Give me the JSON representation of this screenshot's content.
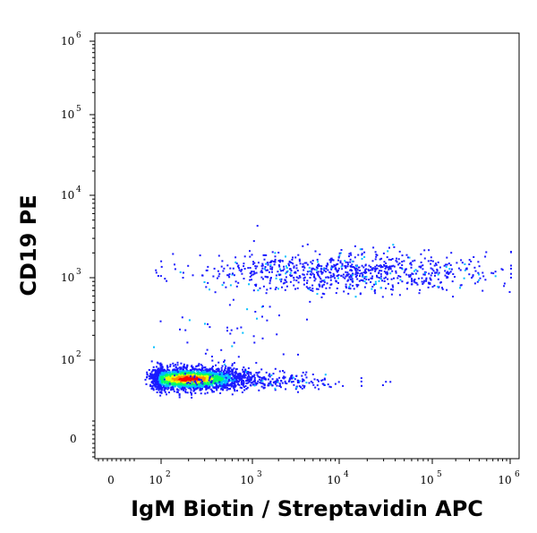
{
  "chart_data": {
    "type": "scatter",
    "subtype": "flow-cytometry-density-plot",
    "xlabel": "IgM Biotin / Streptavidin APC",
    "ylabel": "CD19 PE",
    "x_scale": "biexponential",
    "y_scale": "biexponential",
    "x_ticks": [
      {
        "value": 0,
        "base": "0",
        "exp": ""
      },
      {
        "value": 100,
        "base": "10",
        "exp": "2"
      },
      {
        "value": 1000,
        "base": "10",
        "exp": "3"
      },
      {
        "value": 10000,
        "base": "10",
        "exp": "4"
      },
      {
        "value": 100000,
        "base": "10",
        "exp": "5"
      },
      {
        "value": 1000000,
        "base": "10",
        "exp": "6"
      }
    ],
    "y_ticks": [
      {
        "value": 0,
        "base": "0",
        "exp": ""
      },
      {
        "value": 100,
        "base": "10",
        "exp": "2"
      },
      {
        "value": 1000,
        "base": "10",
        "exp": "3"
      },
      {
        "value": 10000,
        "base": "10",
        "exp": "4"
      },
      {
        "value": 100000,
        "base": "10",
        "exp": "5"
      },
      {
        "value": 1000000,
        "base": "10",
        "exp": "6"
      }
    ],
    "grid": false,
    "color_scale": [
      "#1a1aff",
      "#00bfff",
      "#00ff66",
      "#e6ff00",
      "#ff8c00",
      "#ff0000"
    ],
    "populations": [
      {
        "x_center": 200,
        "y_center": 35,
        "x_spread_decades": 0.32,
        "y_spread_decades": 0.14,
        "count": 2400,
        "density": "high"
      },
      {
        "x_center": 12000,
        "y_center": 1200,
        "x_spread_decades": 0.8,
        "y_spread_decades": 0.12,
        "count": 850,
        "density": "low"
      },
      {
        "x_center": 1500,
        "y_center": 30,
        "x_spread_decades": 0.5,
        "y_spread_decades": 0.1,
        "count": 250,
        "density": "low"
      },
      {
        "x_center": 500,
        "y_center": 200,
        "x_spread_decades": 0.4,
        "y_spread_decades": 0.35,
        "count": 60,
        "density": "low"
      }
    ]
  }
}
